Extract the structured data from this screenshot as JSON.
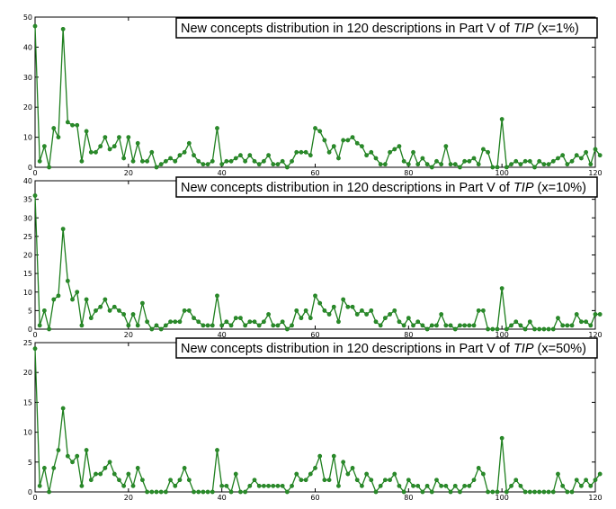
{
  "colors": {
    "line": "#1e7f1e",
    "marker": "#2a8a2a",
    "axis": "#000000",
    "title_border": "#000000"
  },
  "chart_data": [
    {
      "type": "line",
      "title_prefix": "New concepts distribution in 120 descriptions in Part V of ",
      "title_em": "TIP",
      "title_suffix": " (x=1%)",
      "xlim": [
        0,
        120
      ],
      "ylim": [
        0,
        50
      ],
      "xticks": [
        0,
        20,
        40,
        60,
        80,
        100,
        120
      ],
      "yticks": [
        0,
        10,
        20,
        30,
        40,
        50
      ],
      "x_start": 0,
      "values": [
        47,
        2,
        7,
        0,
        13,
        10,
        46,
        15,
        14,
        14,
        2,
        12,
        5,
        5,
        7,
        10,
        6,
        7,
        10,
        3,
        10,
        2,
        8,
        2,
        2,
        5,
        0,
        1,
        2,
        3,
        2,
        4,
        5,
        8,
        4,
        2,
        1,
        1,
        2,
        13,
        1,
        2,
        2,
        3,
        4,
        2,
        4,
        2,
        1,
        2,
        4,
        1,
        1,
        2,
        0,
        2,
        5,
        5,
        5,
        4,
        13,
        12,
        9,
        5,
        7,
        3,
        9,
        9,
        10,
        8,
        7,
        4,
        5,
        3,
        1,
        1,
        5,
        6,
        7,
        2,
        1,
        5,
        1,
        3,
        1,
        0,
        2,
        1,
        7,
        1,
        1,
        0,
        2,
        2,
        3,
        1,
        6,
        5,
        0,
        0,
        16,
        0,
        1,
        2,
        1,
        2,
        2,
        0,
        2,
        1,
        1,
        2,
        3,
        4,
        1,
        2,
        4,
        3,
        5,
        1,
        6,
        4
      ]
    },
    {
      "type": "line",
      "title_prefix": "New concepts distribution in 120 descriptions in Part V of ",
      "title_em": "TIP",
      "title_suffix": " (x=10%)",
      "xlim": [
        0,
        120
      ],
      "ylim": [
        0,
        40
      ],
      "xticks": [
        0,
        20,
        40,
        60,
        80,
        100,
        120
      ],
      "yticks": [
        0,
        5,
        10,
        15,
        20,
        25,
        30,
        35,
        40
      ],
      "x_start": 0,
      "values": [
        36,
        1,
        5,
        0,
        8,
        9,
        27,
        13,
        8,
        10,
        1,
        8,
        3,
        5,
        6,
        8,
        5,
        6,
        5,
        4,
        1,
        4,
        1,
        7,
        2,
        0,
        1,
        0,
        1,
        2,
        2,
        2,
        5,
        5,
        3,
        2,
        1,
        1,
        1,
        9,
        1,
        2,
        1,
        3,
        3,
        1,
        2,
        2,
        1,
        2,
        4,
        1,
        1,
        2,
        0,
        1,
        5,
        3,
        5,
        3,
        9,
        7,
        5,
        4,
        6,
        2,
        8,
        6,
        6,
        4,
        5,
        4,
        5,
        2,
        1,
        3,
        4,
        5,
        2,
        1,
        3,
        1,
        2,
        1,
        0,
        1,
        1,
        4,
        1,
        1,
        0,
        1,
        1,
        1,
        1,
        5,
        5,
        0,
        0,
        0,
        11,
        0,
        1,
        2,
        1,
        0,
        2,
        0,
        0,
        0,
        0,
        0,
        3,
        1,
        1,
        1,
        4,
        2,
        2,
        1,
        4,
        4
      ]
    },
    {
      "type": "line",
      "title_prefix": "New concepts distribution in 120 descriptions in Part V of ",
      "title_em": "TIP",
      "title_suffix": " (x=50%)",
      "xlim": [
        0,
        120
      ],
      "ylim": [
        0,
        25
      ],
      "xticks": [
        0,
        20,
        40,
        60,
        80,
        100,
        120
      ],
      "yticks": [
        0,
        5,
        10,
        15,
        20,
        25
      ],
      "x_start": 0,
      "values": [
        24,
        1,
        4,
        0,
        4,
        7,
        14,
        6,
        5,
        6,
        1,
        7,
        2,
        3,
        3,
        4,
        5,
        3,
        2,
        1,
        3,
        1,
        4,
        2,
        0,
        0,
        0,
        0,
        0,
        2,
        1,
        2,
        4,
        2,
        0,
        0,
        0,
        0,
        0,
        7,
        1,
        1,
        0,
        3,
        0,
        0,
        1,
        2,
        1,
        1,
        1,
        1,
        1,
        1,
        0,
        1,
        3,
        2,
        2,
        3,
        4,
        6,
        2,
        2,
        6,
        1,
        5,
        3,
        4,
        2,
        1,
        3,
        2,
        0,
        1,
        2,
        2,
        3,
        1,
        0,
        2,
        1,
        1,
        0,
        1,
        0,
        2,
        1,
        1,
        0,
        1,
        0,
        1,
        1,
        2,
        4,
        3,
        0,
        0,
        0,
        9,
        0,
        1,
        2,
        1,
        0,
        0,
        0,
        0,
        0,
        0,
        0,
        3,
        1,
        0,
        0,
        2,
        1,
        2,
        1,
        2,
        3
      ]
    }
  ]
}
